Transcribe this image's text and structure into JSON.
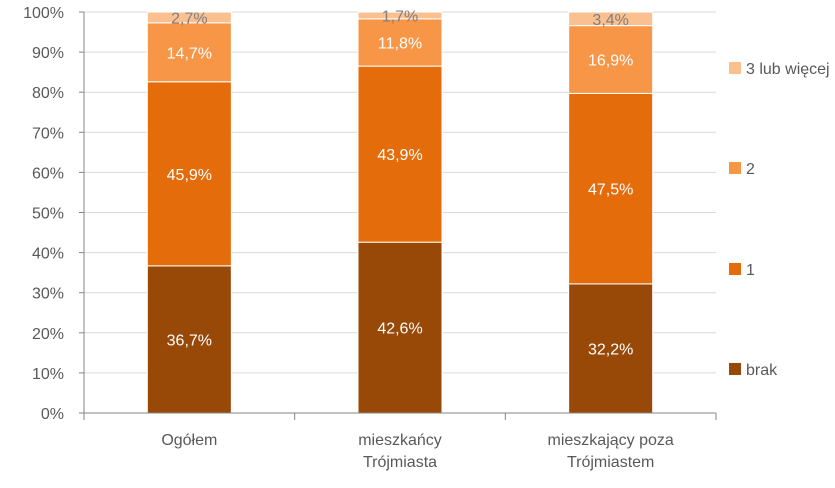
{
  "chart_data": {
    "type": "bar",
    "stacked": true,
    "categories": [
      [
        "Ogółem"
      ],
      [
        "mieszkańcy",
        "Trójmiasta"
      ],
      [
        "mieszkający poza",
        "Trójmiastem"
      ]
    ],
    "series": [
      {
        "name": "brak",
        "values": [
          36.7,
          42.6,
          32.2
        ],
        "labels": [
          "36,7%",
          "42,6%",
          "32,2%"
        ],
        "color": "#984807",
        "label_color": "#ffffff"
      },
      {
        "name": "1",
        "values": [
          45.9,
          43.9,
          47.5
        ],
        "labels": [
          "45,9%",
          "43,9%",
          "47,5%"
        ],
        "color": "#e46c0a",
        "label_color": "#ffffff"
      },
      {
        "name": "2",
        "values": [
          14.7,
          11.8,
          16.9
        ],
        "labels": [
          "14,7%",
          "11,8%",
          "16,9%"
        ],
        "color": "#f79646",
        "label_color": "#ffffff"
      },
      {
        "name": "3 lub więcej",
        "values": [
          2.7,
          1.7,
          3.4
        ],
        "labels": [
          "2,7%",
          "1,7%",
          "3,4%"
        ],
        "color": "#fac090",
        "label_color": "#7f7f7f"
      }
    ],
    "yticks": [
      "0%",
      "10%",
      "20%",
      "30%",
      "40%",
      "50%",
      "60%",
      "70%",
      "80%",
      "90%",
      "100%"
    ],
    "ylim": [
      0,
      100
    ],
    "grid": true,
    "legend_position": "right"
  }
}
